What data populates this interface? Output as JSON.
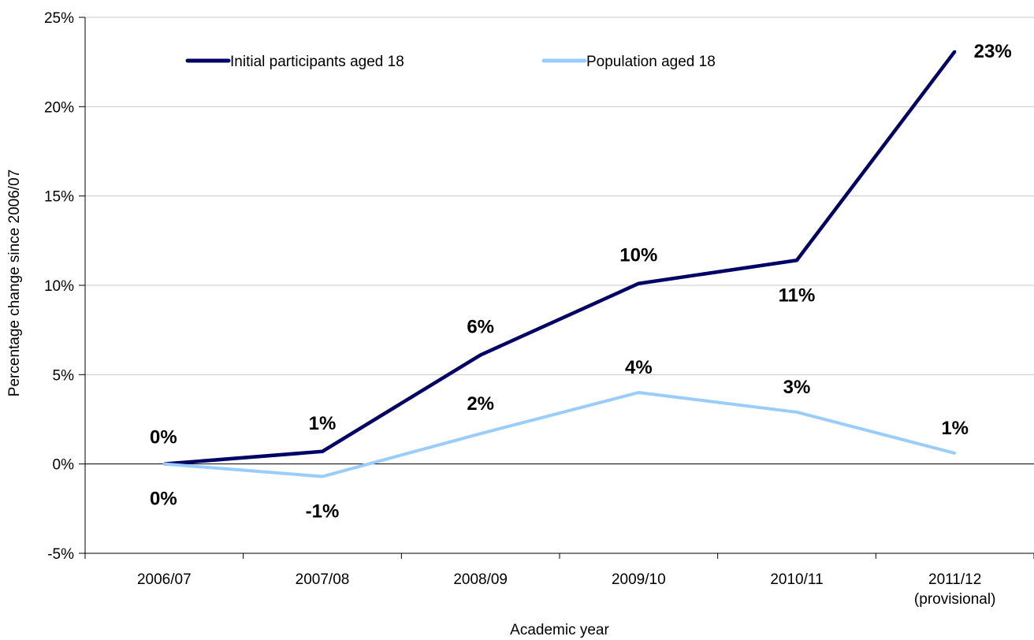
{
  "chart_data": {
    "type": "line",
    "categories": [
      "2006/07",
      "2007/08",
      "2008/09",
      "2009/10",
      "2010/11",
      "2011/12 (provisional)"
    ],
    "category_lines": [
      [
        "2006/07"
      ],
      [
        "2007/08"
      ],
      [
        "2008/09"
      ],
      [
        "2009/10"
      ],
      [
        "2010/11"
      ],
      [
        "2011/12",
        "(provisional)"
      ]
    ],
    "series": [
      {
        "name": "Initial participants aged 18",
        "color": "#000066",
        "values": [
          0.0,
          0.7,
          6.1,
          10.1,
          11.4,
          23.1
        ],
        "labels": [
          "0%",
          "1%",
          "6%",
          "10%",
          "11%",
          "23%"
        ]
      },
      {
        "name": "Population aged 18",
        "color": "#99ccff",
        "values": [
          0.0,
          -0.7,
          1.7,
          4.0,
          2.9,
          0.6
        ],
        "labels": [
          "0%",
          "-1%",
          "2%",
          "4%",
          "3%",
          "1%"
        ]
      }
    ],
    "xlabel": "Academic year",
    "ylabel": "Percentage change since 2006/07",
    "ylim": [
      -5,
      25
    ],
    "yticks": [
      -5,
      0,
      5,
      10,
      15,
      20,
      25
    ],
    "ytick_labels": [
      "-5%",
      "0%",
      "5%",
      "10%",
      "15%",
      "20%",
      "25%"
    ],
    "grid": true,
    "legend_position": "top"
  }
}
